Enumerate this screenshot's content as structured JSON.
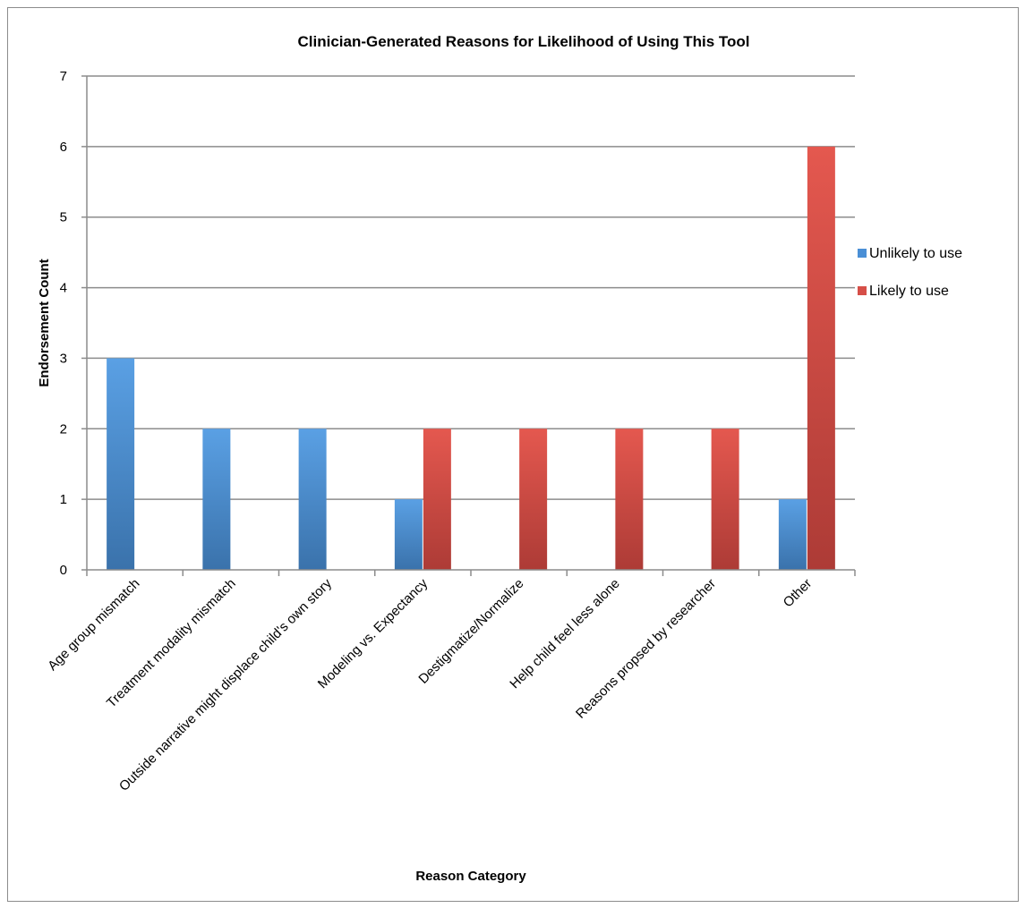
{
  "chart_data": {
    "type": "bar",
    "title": "Clinician-Generated Reasons for Likelihood of Using This Tool",
    "xlabel": "Reason Category",
    "ylabel": "Endorsement Count",
    "ylim": [
      0,
      7
    ],
    "yticks": [
      "0",
      "1",
      "2",
      "3",
      "4",
      "5",
      "6",
      "7"
    ],
    "grid": true,
    "legend_position": "right",
    "categories": [
      "Age group mismatch",
      "Treatment modality mismatch",
      "Outside narrative might displace child's own story",
      "Modeling vs. Expectancy",
      "Destigmatize/Normalize",
      "Help child feel less alone",
      "Reasons propsed by researcher",
      "Other"
    ],
    "series": [
      {
        "name": "Unlikely to use",
        "color": "#4a8fd6",
        "values": [
          3,
          2,
          2,
          1,
          0,
          0,
          0,
          1
        ]
      },
      {
        "name": "Likely to use",
        "color": "#d64f48",
        "values": [
          0,
          0,
          0,
          2,
          2,
          2,
          2,
          6
        ]
      }
    ]
  }
}
